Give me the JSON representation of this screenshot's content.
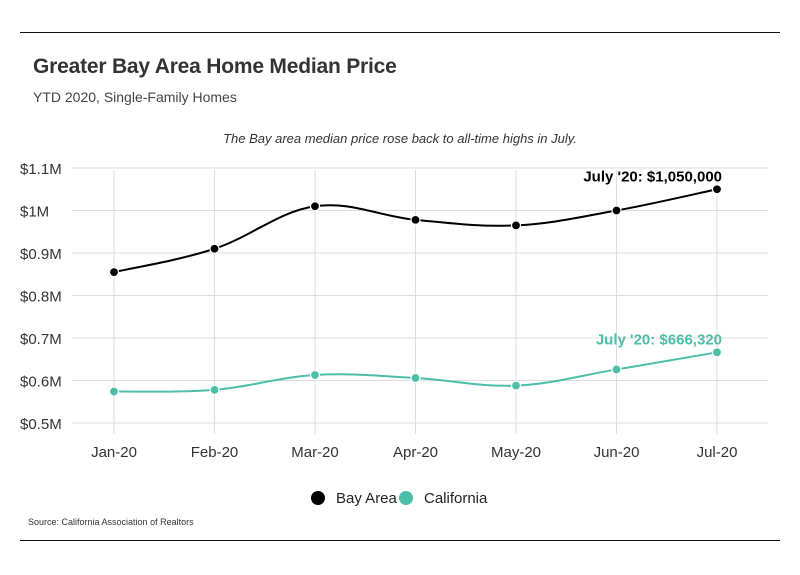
{
  "header": {
    "title": "Greater Bay Area Home Median Price",
    "subtitle": "YTD 2020, Single-Family Homes"
  },
  "footer": {
    "source": "Source:  California Association of Realtors"
  },
  "colors": {
    "bay_area": "#000000",
    "california": "#4dbfa8",
    "grid": "#dddddd",
    "axis_text": "#333333"
  },
  "chart_data": {
    "type": "line",
    "annotation_top": "The Bay area median price rose back to all-time highs in July.",
    "x": [
      "Jan-20",
      "Feb-20",
      "Mar-20",
      "Apr-20",
      "May-20",
      "Jun-20",
      "Jul-20"
    ],
    "ylim": [
      500000,
      1100000
    ],
    "yticks": [
      500000,
      600000,
      700000,
      800000,
      900000,
      1000000,
      1100000
    ],
    "ytick_labels": [
      "$0.5M",
      "$0.6M",
      "$0.7M",
      "$0.8M",
      "$0.9M",
      "$1M",
      "$1.1M"
    ],
    "grid": true,
    "legend_placement": "bottom-center",
    "series": [
      {
        "name": "Bay Area",
        "color": "#000000",
        "values": [
          855000,
          910000,
          1010000,
          978000,
          965000,
          1000000,
          1050000
        ],
        "end_label": "July '20: $1,050,000"
      },
      {
        "name": "California",
        "color": "#4dbfa8",
        "values": [
          574000,
          578000,
          613000,
          606000,
          588000,
          626000,
          666320
        ],
        "end_label": "July '20: $666,320"
      }
    ]
  }
}
